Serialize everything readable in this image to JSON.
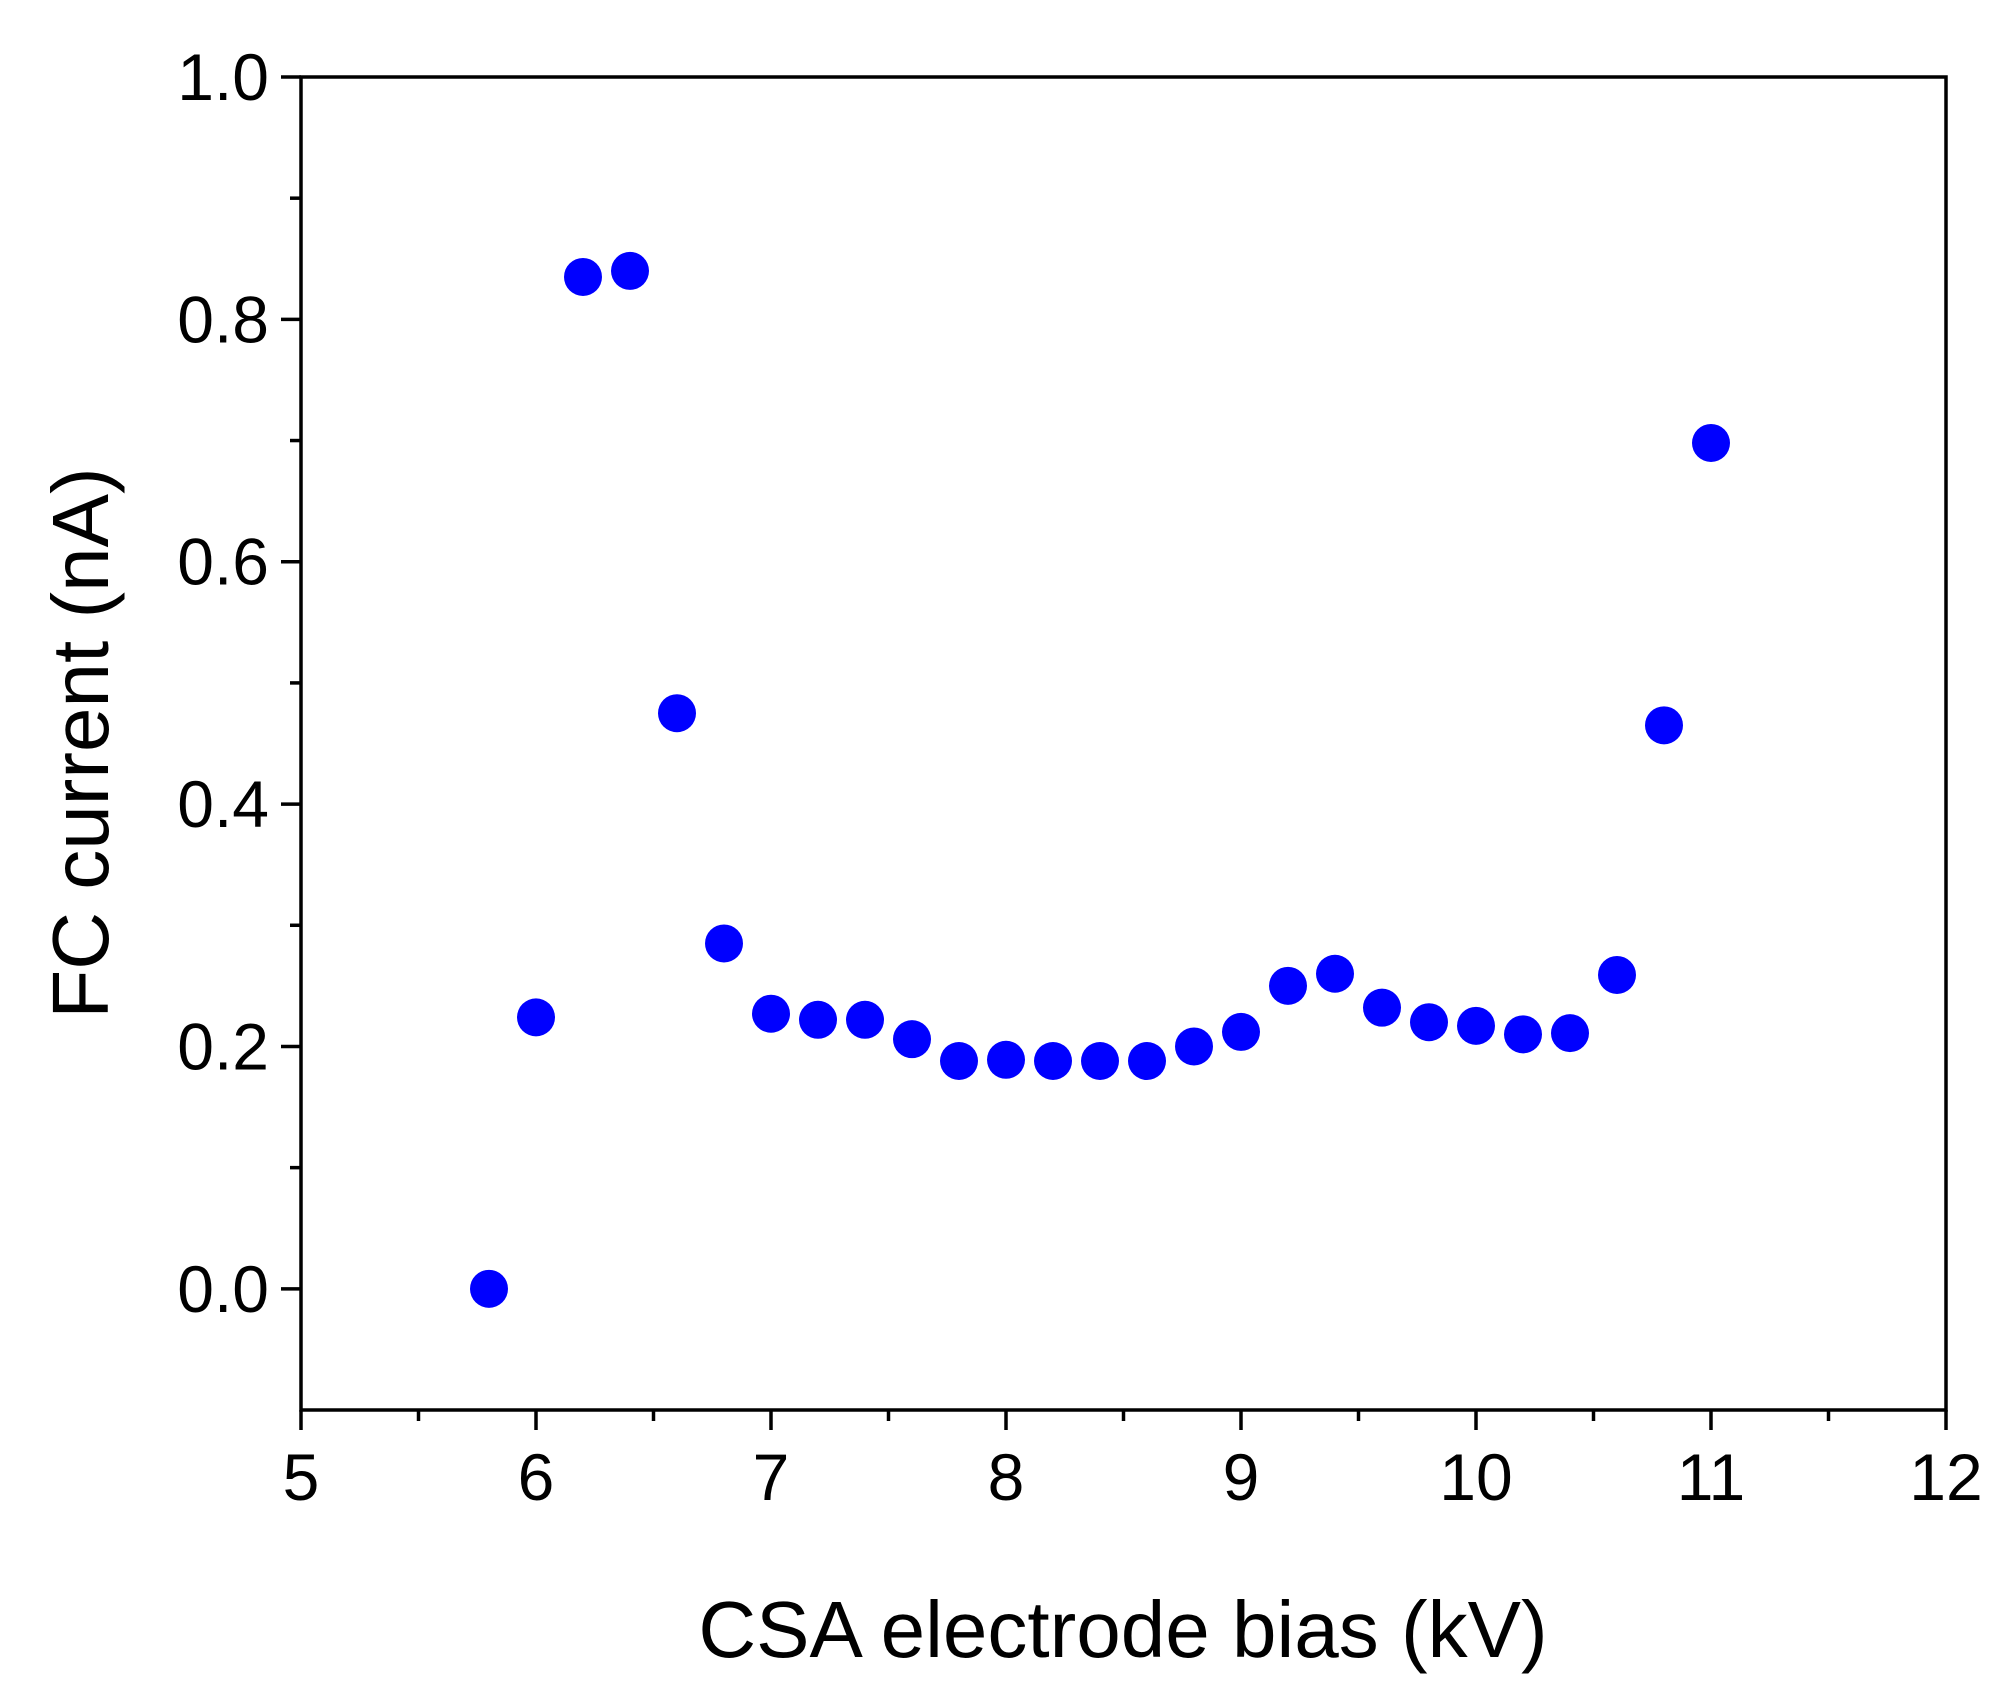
{
  "chart_data": {
    "type": "scatter",
    "title": "",
    "xlabel": "CSA electrode bias (kV)",
    "ylabel": "FC current (nA)",
    "xlim": [
      5,
      12
    ],
    "ylim": [
      -0.1,
      1.0
    ],
    "xticks": [
      5,
      6,
      7,
      8,
      9,
      10,
      11,
      12
    ],
    "xtick_labels": [
      "5",
      "6",
      "7",
      "8",
      "9",
      "10",
      "11",
      "12"
    ],
    "yticks": [
      0.0,
      0.2,
      0.4,
      0.6,
      0.8,
      1.0
    ],
    "ytick_labels": [
      "0.0",
      "0.2",
      "0.4",
      "0.6",
      "0.8",
      "1.0"
    ],
    "grid": false,
    "legend": null,
    "marker_color": "#0000ff",
    "series": [
      {
        "name": "FC current",
        "x": [
          5.8,
          6.0,
          6.2,
          6.4,
          6.6,
          6.8,
          7.0,
          7.2,
          7.4,
          7.6,
          7.8,
          8.0,
          8.2,
          8.4,
          8.6,
          8.8,
          9.0,
          9.2,
          9.4,
          9.6,
          9.8,
          10.0,
          10.2,
          10.4,
          10.6,
          10.8,
          11.0
        ],
        "y": [
          0.0,
          0.224,
          0.835,
          0.84,
          0.475,
          0.285,
          0.227,
          0.222,
          0.222,
          0.206,
          0.188,
          0.189,
          0.188,
          0.188,
          0.188,
          0.2,
          0.212,
          0.25,
          0.26,
          0.232,
          0.22,
          0.217,
          0.21,
          0.211,
          0.259,
          0.465,
          0.698
        ]
      }
    ]
  }
}
